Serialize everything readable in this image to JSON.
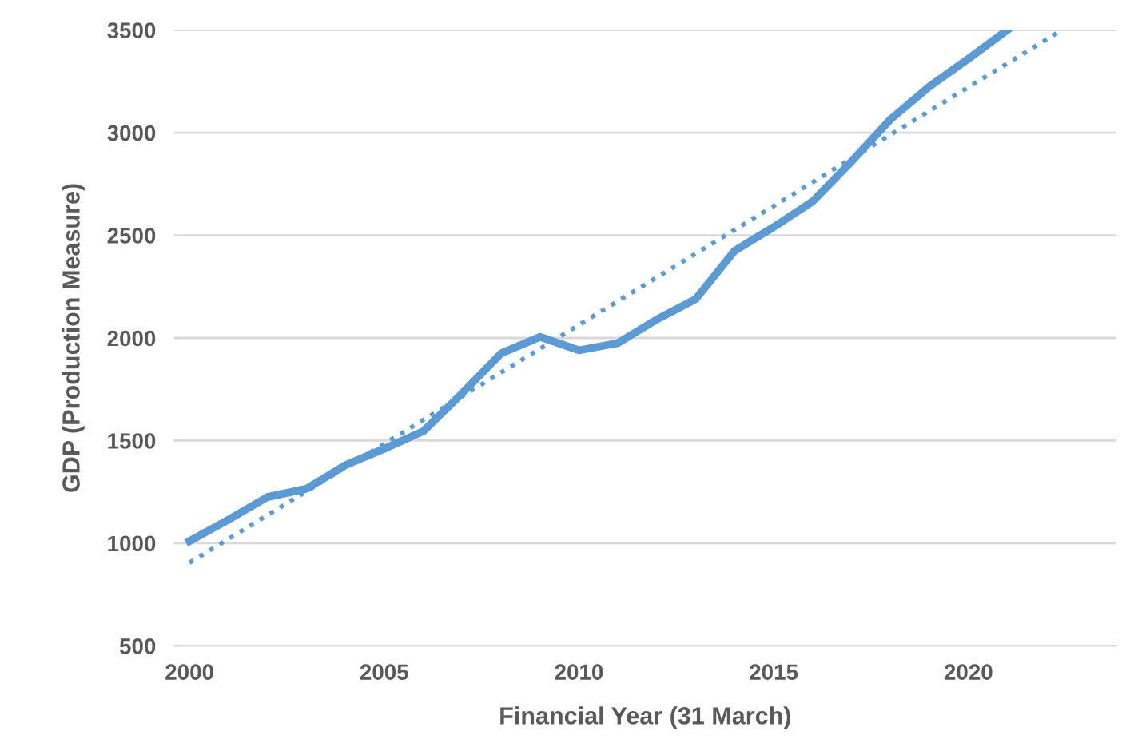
{
  "chart_data": {
    "type": "line",
    "xlabel": "Financial Year (31 March)",
    "ylabel": "GDP (Production Measure)",
    "xlim": [
      1999.6,
      2023.8
    ],
    "xticks": [
      2000,
      2005,
      2010,
      2015,
      2020
    ],
    "ylim": [
      500,
      3500
    ],
    "yticks": [
      500,
      1000,
      1500,
      2000,
      2500,
      3000,
      3500
    ],
    "grid": "y",
    "legend": false,
    "series": [
      {
        "color": "#5b9bd5",
        "line_style": "solid",
        "x": [
          2000,
          2001,
          2002,
          2003,
          2004,
          2005,
          2006,
          2007,
          2008,
          2009,
          2010,
          2011,
          2012,
          2013,
          2014,
          2015,
          2016,
          2017,
          2018,
          2019,
          2020,
          2021
        ],
        "values": [
          1010,
          1115,
          1225,
          1265,
          1380,
          1460,
          1545,
          1730,
          1925,
          2005,
          1940,
          1975,
          2090,
          2190,
          2425,
          2540,
          2665,
          2860,
          3065,
          3225,
          3360,
          3500
        ]
      },
      {
        "color": "#5b9bd5",
        "line_style": "dotted",
        "x": [
          2000,
          2022.4
        ],
        "values": [
          905,
          3500
        ]
      }
    ]
  }
}
